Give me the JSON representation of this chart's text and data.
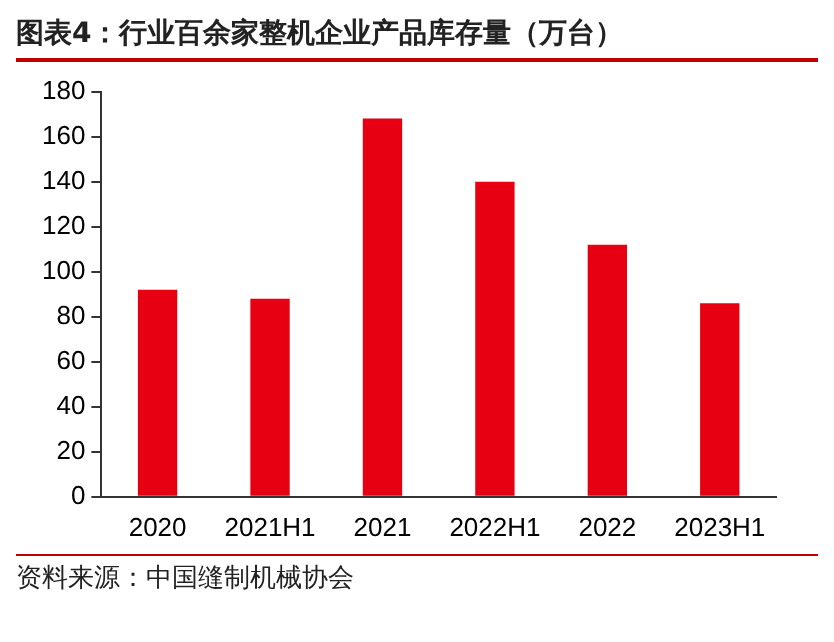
{
  "chart_data": {
    "type": "bar",
    "title": "图表4：行业百余家整机企业产品库存量（万台）",
    "categories": [
      "2020",
      "2021H1",
      "2021",
      "2022H1",
      "2022",
      "2023H1"
    ],
    "values": [
      92,
      88,
      168,
      140,
      112,
      86
    ],
    "color": "#e60012",
    "ylim": [
      0,
      180
    ],
    "yticks": [
      0,
      20,
      40,
      60,
      80,
      100,
      120,
      140,
      160,
      180
    ],
    "grid": false,
    "annotations": [
      "资料来源：中国缝制机械协会"
    ]
  }
}
